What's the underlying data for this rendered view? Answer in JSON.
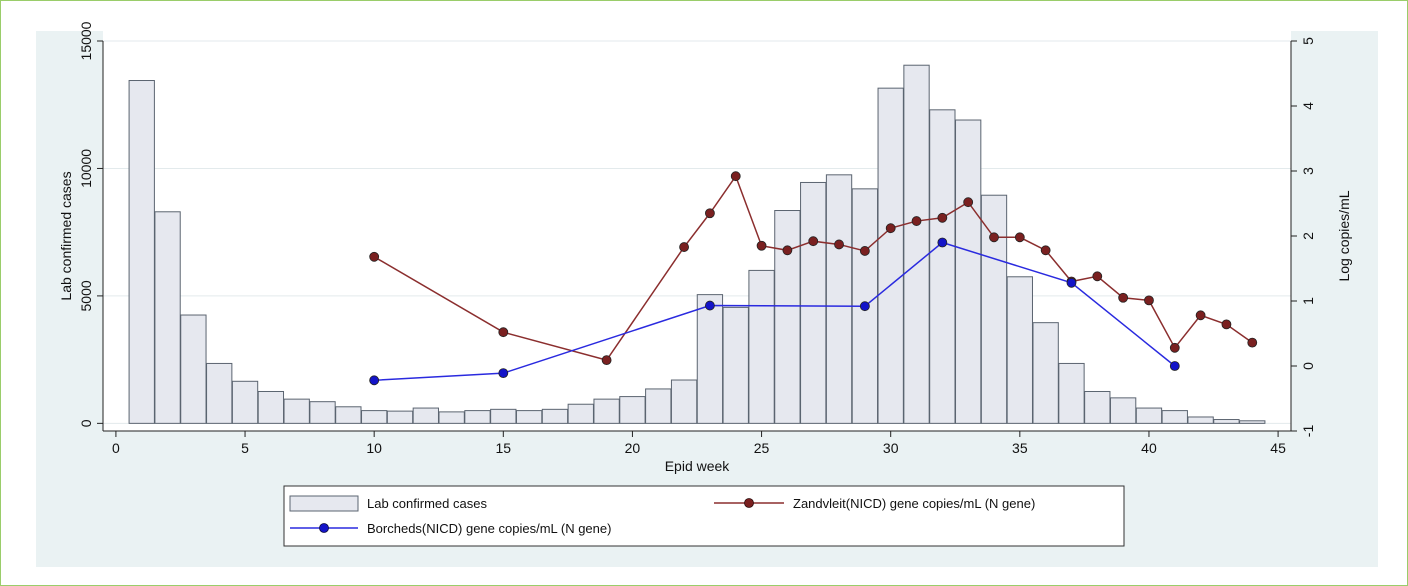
{
  "chart_data": {
    "type": "bar",
    "xlabel": "Epid week",
    "ylabel": "Lab confirmed cases",
    "y2label": "Log copies/mL",
    "xlim": [
      -0.5,
      45.5
    ],
    "ylim": [
      -300,
      15000
    ],
    "y2lim": [
      -1,
      5
    ],
    "xticks": [
      0,
      5,
      10,
      15,
      20,
      25,
      30,
      35,
      40,
      45
    ],
    "yticks": [
      0,
      5000,
      10000,
      15000
    ],
    "y2ticks": [
      -1,
      0,
      1,
      2,
      3,
      4,
      5
    ],
    "grid": true,
    "legend_position": "bottom",
    "bars": {
      "name": "Lab confirmed cases",
      "x": [
        1,
        2,
        3,
        4,
        5,
        6,
        7,
        8,
        9,
        10,
        11,
        12,
        13,
        14,
        15,
        16,
        17,
        18,
        19,
        20,
        21,
        22,
        23,
        24,
        25,
        26,
        27,
        28,
        29,
        30,
        31,
        32,
        33,
        34,
        35,
        36,
        37,
        38,
        39,
        40,
        41,
        42,
        43,
        44
      ],
      "values": [
        13450,
        8300,
        4250,
        2350,
        1650,
        1250,
        950,
        850,
        650,
        500,
        480,
        600,
        450,
        500,
        550,
        500,
        550,
        750,
        950,
        1050,
        1350,
        1700,
        5050,
        4550,
        6000,
        8350,
        9450,
        9750,
        9200,
        13150,
        14050,
        12300,
        11900,
        8950,
        5750,
        3950,
        2350,
        1250,
        1000,
        600,
        500,
        250,
        150,
        100
      ],
      "fill": "#e6e8ef",
      "stroke": "#5b6470"
    },
    "series": [
      {
        "name": "Zandvleit(NICD) gene copies/mL (N gene)",
        "color": "#8b2e2e",
        "marker_fill": "#7a2020",
        "axis": "right",
        "x": [
          10,
          15,
          19,
          22,
          23,
          24,
          25,
          26,
          27,
          28,
          29,
          30,
          31,
          32,
          33,
          34,
          35,
          36,
          37,
          38,
          39,
          40,
          41,
          42,
          43,
          44
        ],
        "values": [
          1.68,
          0.52,
          0.09,
          1.83,
          2.35,
          2.92,
          1.85,
          1.78,
          1.92,
          1.87,
          1.77,
          2.12,
          2.23,
          2.28,
          2.52,
          1.98,
          1.98,
          1.78,
          1.3,
          1.38,
          1.05,
          1.01,
          0.28,
          0.78,
          0.64,
          0.36
        ]
      },
      {
        "name": "Borcheds(NICD) gene copies/mL (N gene)",
        "color": "#2a2adf",
        "marker_fill": "#1414c8",
        "axis": "right",
        "x": [
          10,
          15,
          23,
          29,
          32,
          37,
          41
        ],
        "values": [
          -0.22,
          -0.11,
          0.93,
          0.92,
          1.9,
          1.28,
          0.0
        ]
      }
    ]
  }
}
